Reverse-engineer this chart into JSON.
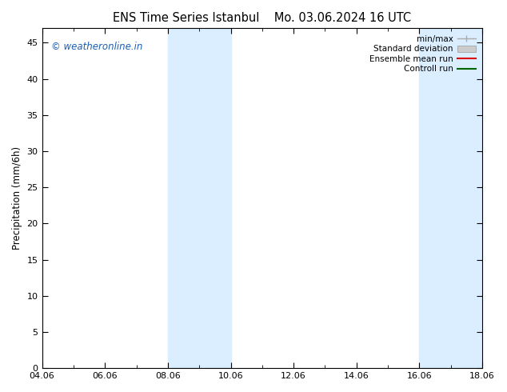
{
  "title_left": "ENS Time Series Istanbul",
  "title_right": "Mo. 03.06.2024 16 UTC",
  "ylabel": "Precipitation (mm/6h)",
  "ylim": [
    0,
    47
  ],
  "yticks": [
    0,
    5,
    10,
    15,
    20,
    25,
    30,
    35,
    40,
    45
  ],
  "xtick_labels": [
    "04.06",
    "06.06",
    "08.06",
    "10.06",
    "12.06",
    "14.06",
    "16.06",
    "18.06"
  ],
  "xvalues": [
    0,
    2,
    4,
    6,
    8,
    10,
    12,
    14
  ],
  "xlim": [
    0,
    14
  ],
  "shaded_bands": [
    {
      "x_start": 4,
      "x_end": 6
    },
    {
      "x_start": 12,
      "x_end": 14
    }
  ],
  "shade_color": "#daeeff",
  "watermark": "© weatheronline.in",
  "watermark_color": "#1a5fb4",
  "legend_labels": [
    "min/max",
    "Standard deviation",
    "Ensemble mean run",
    "Controll run"
  ],
  "legend_colors_line": "#aaaaaa",
  "legend_color_std": "#cccccc",
  "legend_color_ens": "#dd0000",
  "legend_color_ctrl": "#006600",
  "background_color": "#ffffff",
  "title_fontsize": 10.5,
  "ylabel_fontsize": 8.5,
  "tick_fontsize": 8,
  "legend_fontsize": 7.5
}
